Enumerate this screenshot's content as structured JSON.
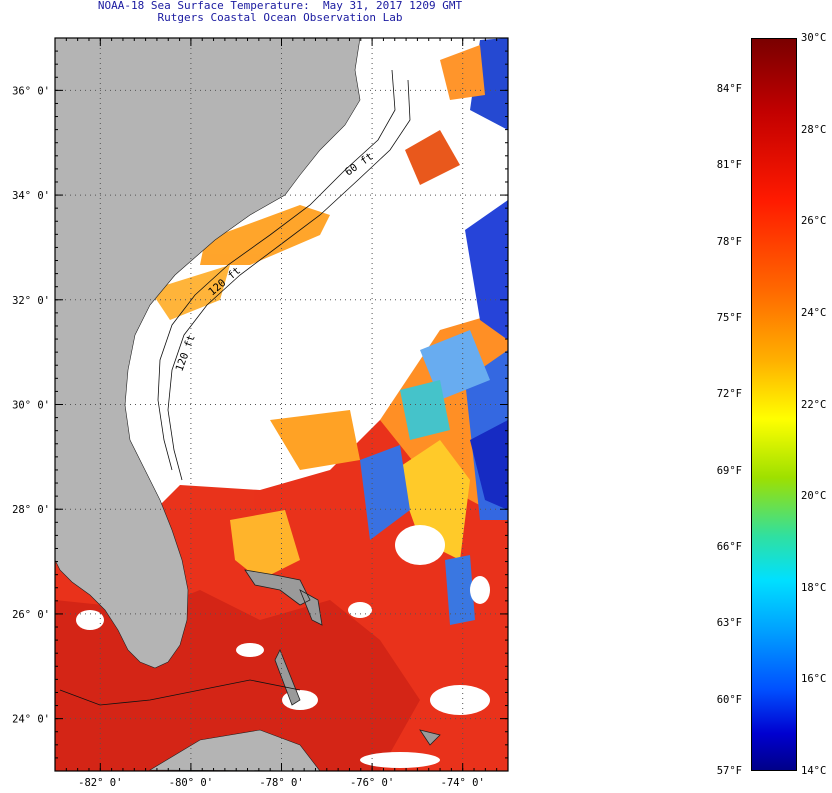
{
  "title": {
    "line1": "NOAA-18 Sea Surface Temperature:  May 31, 2017 1209 GMT",
    "line2": "Rutgers Coastal Ocean Observation Lab"
  },
  "map": {
    "lat_labels": [
      "36° 0'",
      "34° 0'",
      "32° 0'",
      "30° 0'",
      "28° 0'",
      "26° 0'",
      "24° 0'"
    ],
    "lon_labels": [
      "-82° 0'",
      "-80° 0'",
      "-78° 0'",
      "-76° 0'",
      "-74° 0'"
    ],
    "lat_range": [
      23,
      37
    ],
    "lon_range": [
      -83,
      -73
    ],
    "isobath_labels": [
      "120 ft",
      "120 ft",
      "60 ft"
    ],
    "colors": {
      "land": "#b4b4b4",
      "no_data": "#ffffff",
      "grid": "#555555"
    }
  },
  "colorbar": {
    "celsius": [
      "30°C",
      "28°C",
      "26°C",
      "24°C",
      "22°C",
      "20°C",
      "18°C",
      "16°C",
      "14°C"
    ],
    "fahrenheit": [
      "84°F",
      "81°F",
      "78°F",
      "75°F",
      "72°F",
      "69°F",
      "66°F",
      "63°F",
      "60°F",
      "57°F"
    ],
    "min_c": 14,
    "max_c": 30,
    "colors": [
      "#7a0000",
      "#ff1a00",
      "#ff8a00",
      "#ffff00",
      "#30e0a0",
      "#00a0ff",
      "#0000d0"
    ]
  }
}
